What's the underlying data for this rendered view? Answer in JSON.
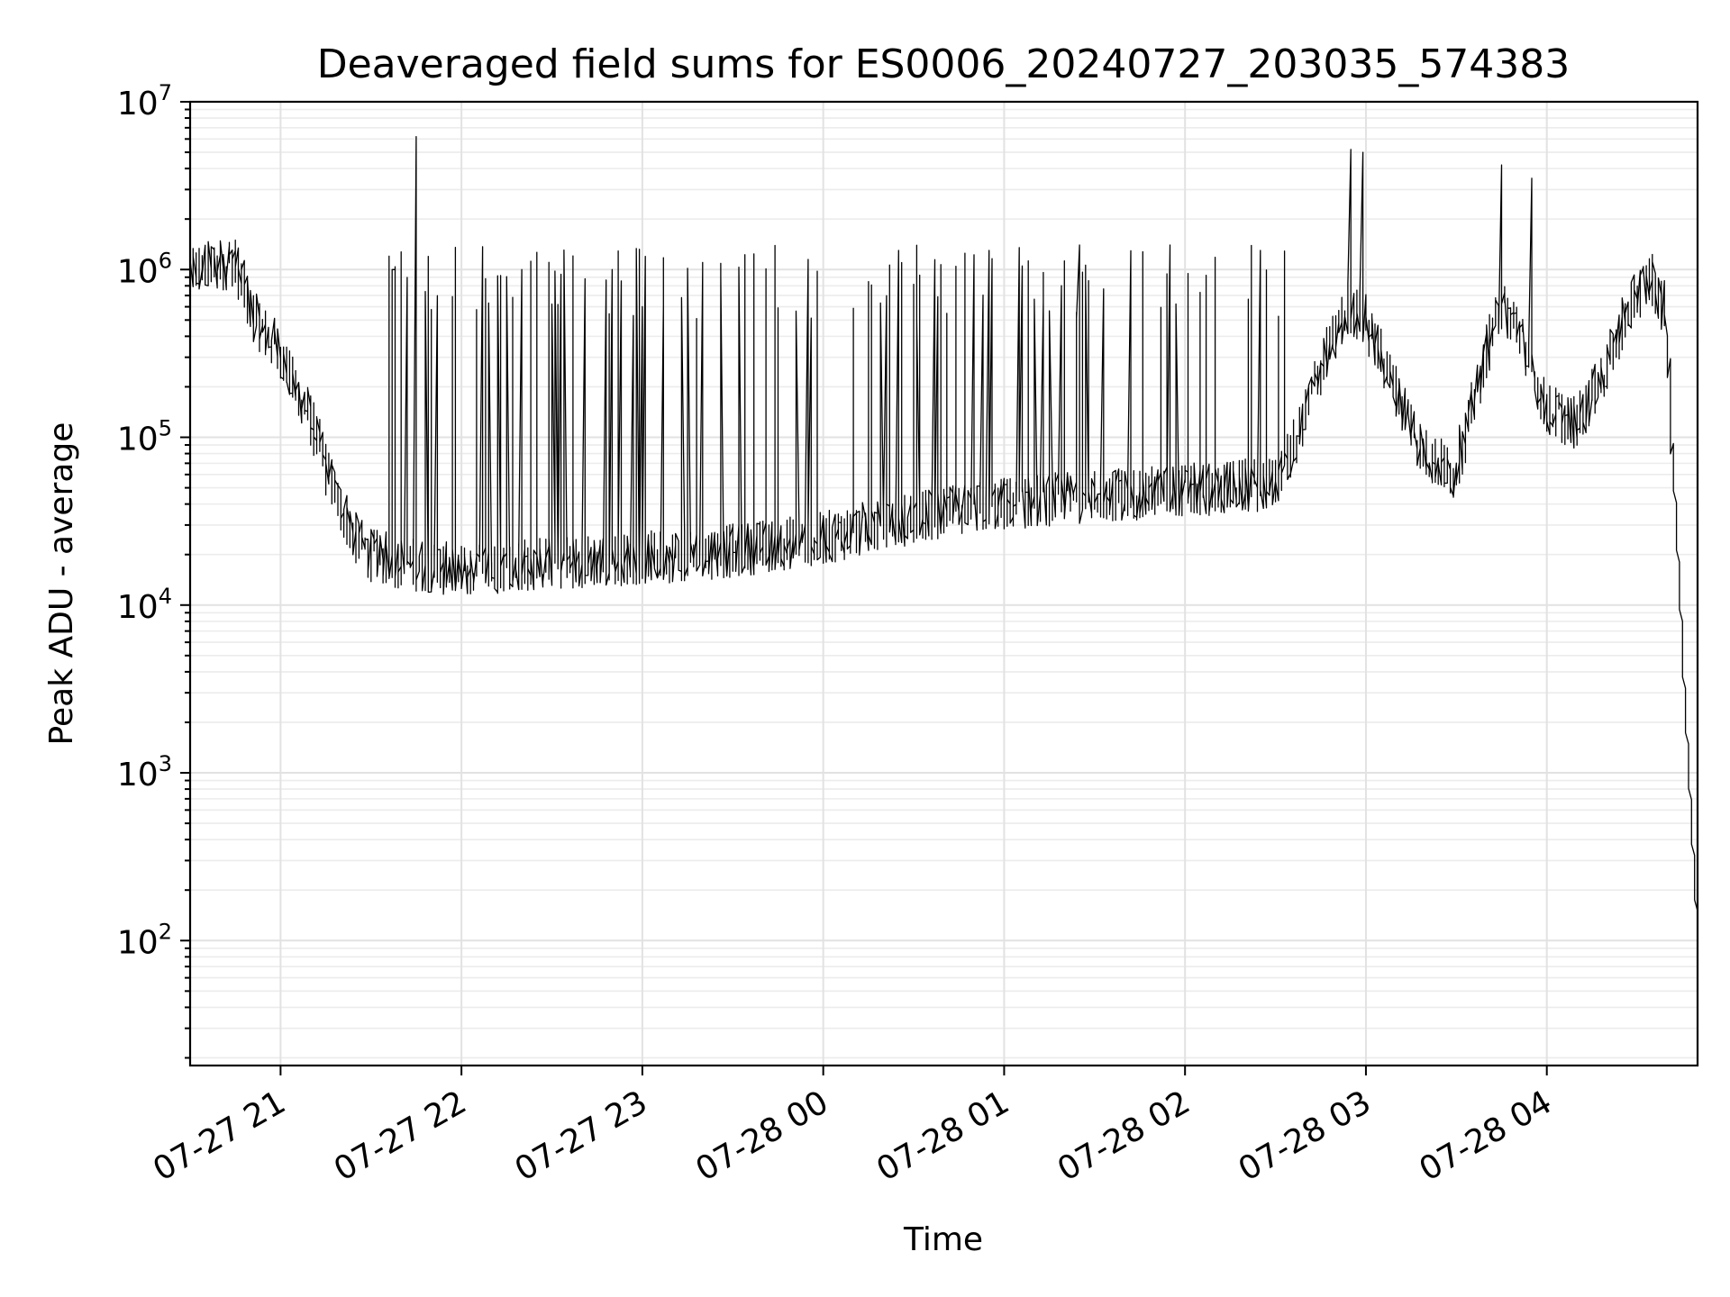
{
  "chart_data": {
    "type": "line",
    "title": "Deaveraged field sums for ES0006_20240727_203035_574383",
    "xlabel": "Time",
    "ylabel": "Peak ADU - average",
    "yscale": "log",
    "ylim": [
      18,
      10000000
    ],
    "xlim": [
      "2024-07-27 20:30",
      "2024-07-28 04:50"
    ],
    "grid": "major and minor",
    "x_ticks": [
      "07-27 21",
      "07-27 22",
      "07-27 23",
      "07-28 00",
      "07-28 01",
      "07-28 02",
      "07-28 03",
      "07-28 04"
    ],
    "x_tick_times": [
      "2024-07-27 21:00",
      "2024-07-27 22:00",
      "2024-07-27 23:00",
      "2024-07-28 00:00",
      "2024-07-28 01:00",
      "2024-07-28 02:00",
      "2024-07-28 03:00",
      "2024-07-28 04:00"
    ],
    "y_ticks": [
      {
        "value": 100,
        "base": "10",
        "exp": "2"
      },
      {
        "value": 1000,
        "base": "10",
        "exp": "3"
      },
      {
        "value": 10000,
        "base": "10",
        "exp": "4"
      },
      {
        "value": 100000,
        "base": "10",
        "exp": "5"
      },
      {
        "value": 1000000,
        "base": "10",
        "exp": "6"
      },
      {
        "value": 10000000,
        "base": "10",
        "exp": "7"
      }
    ],
    "line_color": "#000000",
    "series": [
      {
        "x": [
          "2024-07-27 20:30",
          "2024-07-27 20:40",
          "2024-07-27 20:45",
          "2024-07-27 20:50",
          "2024-07-27 20:55",
          "2024-07-27 21:00",
          "2024-07-27 21:05",
          "2024-07-27 21:10",
          "2024-07-27 21:15",
          "2024-07-27 21:20",
          "2024-07-27 21:25",
          "2024-07-27 21:30",
          "2024-07-27 21:40",
          "2024-07-27 21:50",
          "2024-07-27 22:00",
          "2024-07-27 22:15",
          "2024-07-27 22:30",
          "2024-07-27 23:00",
          "2024-07-27 23:30",
          "2024-07-28 00:00",
          "2024-07-28 00:30",
          "2024-07-28 01:00",
          "2024-07-28 01:30",
          "2024-07-28 02:00",
          "2024-07-28 02:30",
          "2024-07-28 02:37",
          "2024-07-28 02:45",
          "2024-07-28 02:55",
          "2024-07-28 03:00",
          "2024-07-28 03:10",
          "2024-07-28 03:20",
          "2024-07-28 03:30",
          "2024-07-28 03:40",
          "2024-07-28 03:45",
          "2024-07-28 03:50",
          "2024-07-28 04:00",
          "2024-07-28 04:10",
          "2024-07-28 04:20",
          "2024-07-28 04:25",
          "2024-07-28 04:30",
          "2024-07-28 04:35",
          "2024-07-28 04:40",
          "2024-07-28 04:45",
          "2024-07-28 04:50"
        ],
        "values": [
          1000000,
          1050000,
          1150000,
          620000,
          420000,
          330000,
          200000,
          140000,
          70000,
          40000,
          26000,
          20000,
          18000,
          17000,
          16000,
          17000,
          18000,
          19000,
          21000,
          25000,
          33000,
          40000,
          45000,
          48000,
          53000,
          90000,
          250000,
          600000,
          500000,
          200000,
          80000,
          60000,
          300000,
          600000,
          500000,
          150000,
          120000,
          250000,
          450000,
          700000,
          900000,
          550000,
          8000,
          150
        ],
        "spikes": [
          {
            "x": "2024-07-27 21:45",
            "value": 6200000
          },
          {
            "x": "2024-07-27 21:38",
            "value": 1000000
          },
          {
            "x": "2024-07-27 22:20",
            "value": 1000000
          },
          {
            "x": "2024-07-27 22:50",
            "value": 1000000
          },
          {
            "x": "2024-07-27 23:20",
            "value": 1000000
          },
          {
            "x": "2024-07-27 23:55",
            "value": 1150000
          },
          {
            "x": "2024-07-28 00:25",
            "value": 1300000
          },
          {
            "x": "2024-07-28 00:55",
            "value": 1300000
          },
          {
            "x": "2024-07-28 01:25",
            "value": 1400000
          },
          {
            "x": "2024-07-28 01:55",
            "value": 1400000
          },
          {
            "x": "2024-07-28 02:25",
            "value": 1300000
          },
          {
            "x": "2024-07-28 02:55",
            "value": 5200000
          },
          {
            "x": "2024-07-28 02:59",
            "value": 5000000
          },
          {
            "x": "2024-07-28 03:45",
            "value": 4200000
          },
          {
            "x": "2024-07-28 03:55",
            "value": 3500000
          }
        ]
      }
    ]
  }
}
